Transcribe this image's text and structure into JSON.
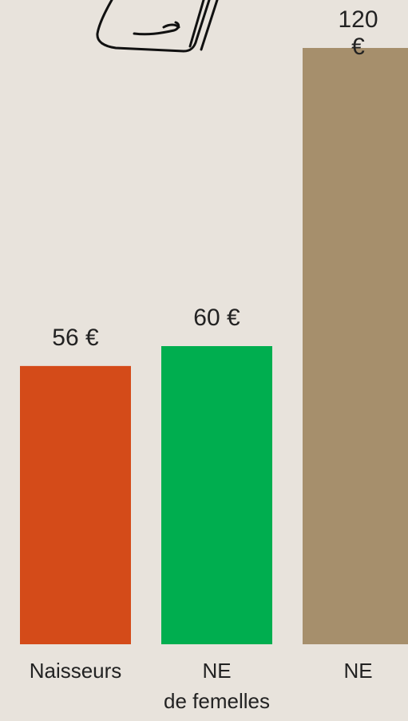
{
  "chart_data": {
    "type": "bar",
    "categories": [
      "Naisseurs",
      "NE\nde femelles",
      "NE"
    ],
    "values": [
      56,
      60,
      120
    ],
    "value_labels": [
      "56 €",
      "60 €",
      "120 €"
    ],
    "colors": [
      "#d44b19",
      "#00ae4f",
      "#a68f6c"
    ]
  }
}
